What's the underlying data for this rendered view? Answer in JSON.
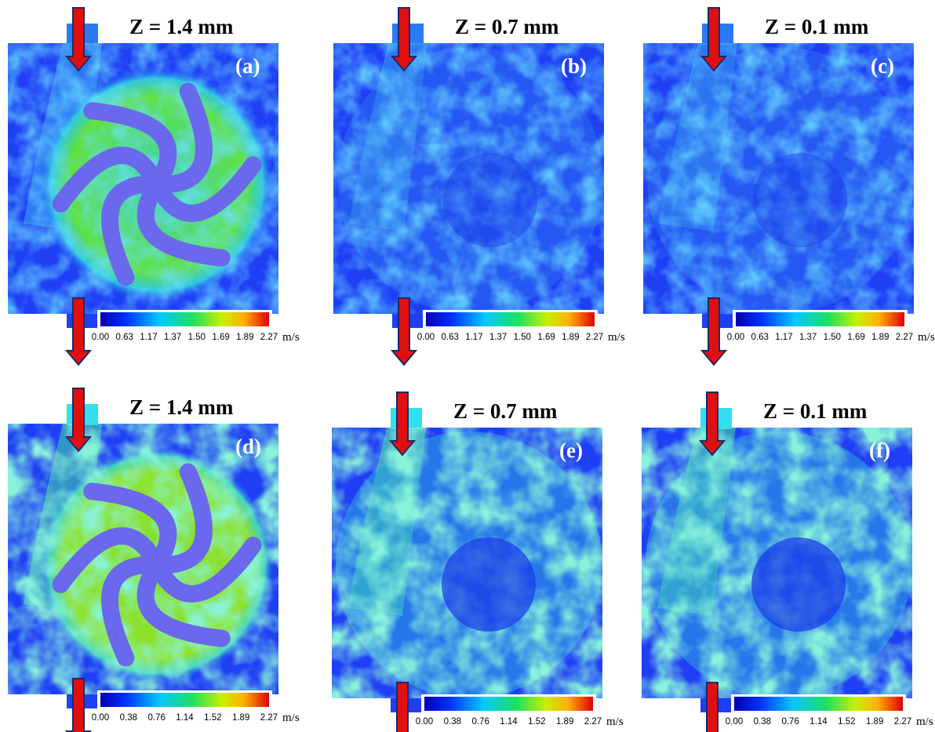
{
  "panels": [
    {
      "z_label": "Z = 1.4 mm",
      "letter": "(a)",
      "colorbar": {
        "ticks": [
          "0.00",
          "0.63",
          "1.17",
          "1.37",
          "1.50",
          "1.69",
          "1.89",
          "2.27"
        ],
        "unit": "m/s"
      }
    },
    {
      "z_label": "Z = 0.7 mm",
      "letter": "(b)",
      "colorbar": {
        "ticks": [
          "0.00",
          "0.63",
          "1.17",
          "1.37",
          "1.50",
          "1.69",
          "1.89",
          "2.27"
        ],
        "unit": "m/s"
      }
    },
    {
      "z_label": "Z = 0.1 mm",
      "letter": "(c)",
      "colorbar": {
        "ticks": [
          "0.00",
          "0.63",
          "1.17",
          "1.37",
          "1.50",
          "1.69",
          "1.89",
          "2.27"
        ],
        "unit": "m/s"
      }
    },
    {
      "z_label": "Z = 1.4 mm",
      "letter": "(d)",
      "colorbar": {
        "ticks": [
          "0.00",
          "0.38",
          "0.76",
          "1.14",
          "1.52",
          "1.89",
          "2.27"
        ],
        "unit": "m/s"
      }
    },
    {
      "z_label": "Z = 0.7 mm",
      "letter": "(e)",
      "colorbar": {
        "ticks": [
          "0.00",
          "0.38",
          "0.76",
          "1.14",
          "1.52",
          "1.89",
          "2.27"
        ],
        "unit": "m/s"
      }
    },
    {
      "z_label": "Z = 0.1 mm",
      "letter": "(f)",
      "colorbar": {
        "ticks": [
          "0.00",
          "0.38",
          "0.76",
          "1.14",
          "1.52",
          "1.89",
          "2.27"
        ],
        "unit": "m/s"
      }
    }
  ]
}
